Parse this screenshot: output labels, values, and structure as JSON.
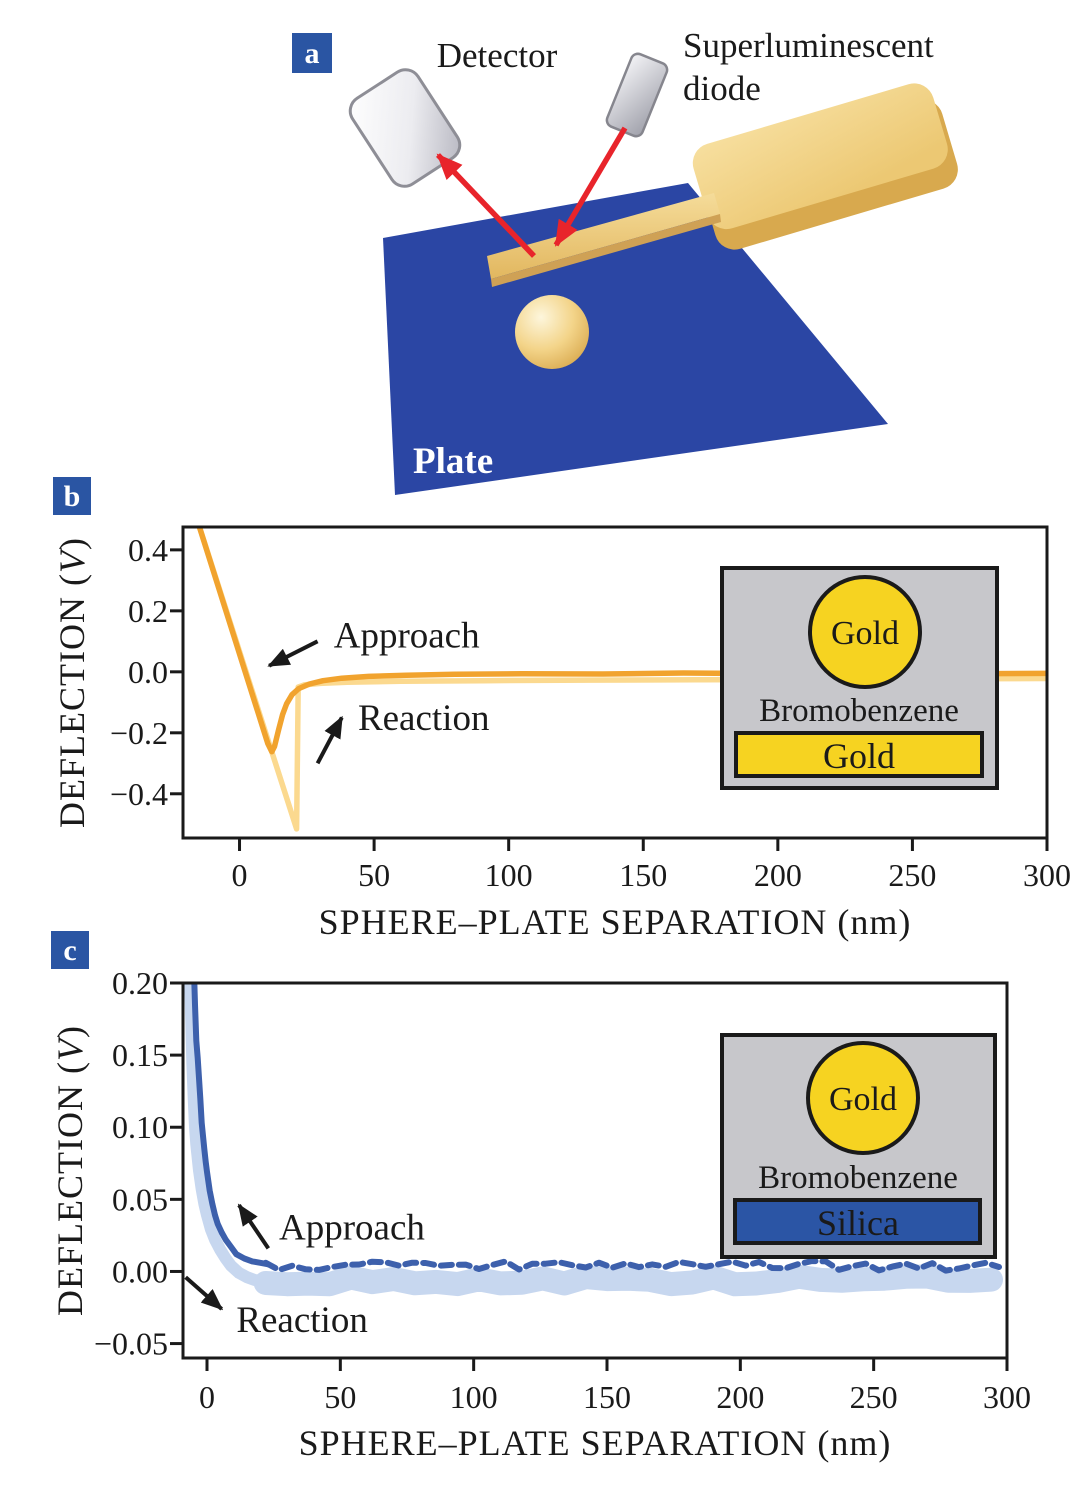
{
  "figure": {
    "tag_color": "#2A55A3",
    "background": "#FFFFFF"
  },
  "panels": {
    "a": {
      "tag": "a"
    },
    "b": {
      "tag": "b"
    },
    "c": {
      "tag": "c"
    }
  },
  "panel_a": {
    "labels": {
      "detector": "Detector",
      "diode_line1": "Superluminescent",
      "diode_line2": "diode",
      "plate": "Plate"
    },
    "colors": {
      "plate_blue": "#2B46A4",
      "arrow_red": "#E8242B",
      "gold": "#F0CE7E"
    }
  },
  "chart_data": [
    {
      "id": "b",
      "type": "line",
      "xlabel": "SPHERE–PLATE SEPARATION (nm)",
      "ylabel": "DEFLECTION",
      "ylabel_unit": "V",
      "xlim": [
        -21,
        300
      ],
      "ylim": [
        -0.545,
        0.475
      ],
      "x_ticks": [
        0,
        50,
        100,
        150,
        200,
        250,
        300
      ],
      "x_tick_labels": [
        "0",
        "50",
        "100",
        "150",
        "200",
        "250",
        "300"
      ],
      "y_ticks": [
        0.4,
        0.2,
        0.0,
        -0.2,
        -0.4
      ],
      "y_tick_labels": [
        "0.4",
        "0.2",
        "0.0",
        "−0.2",
        "−0.4"
      ],
      "grid": false,
      "legend": "none",
      "series": [
        {
          "name": "Reaction",
          "color": "#FBD98F",
          "parts": [
            {
              "width": 5.5,
              "points": [
                [
                  -16.5,
                  0.52
                ],
                [
                  21.2,
                  -0.515
                ],
                [
                  21.8,
                  -0.05
                ],
                [
                  24,
                  -0.043
                ],
                [
                  30,
                  -0.038
                ],
                [
                  40,
                  -0.034
                ],
                [
                  60,
                  -0.031
                ],
                [
                  90,
                  -0.029
                ],
                [
                  130,
                  -0.027
                ],
                [
                  170,
                  -0.026
                ],
                [
                  210,
                  -0.025
                ],
                [
                  260,
                  -0.023
                ],
                [
                  300,
                  -0.022
                ]
              ]
            }
          ]
        },
        {
          "name": "Approach",
          "color": "#F1A32E",
          "parts": [
            {
              "width": 5.5,
              "points": [
                [
                  -16.5,
                  0.52
                ],
                [
                  10.5,
                  -0.235
                ],
                [
                  12,
                  -0.262
                ],
                [
                  13,
                  -0.245
                ],
                [
                  14.5,
                  -0.19
                ],
                [
                  16,
                  -0.14
                ],
                [
                  17.5,
                  -0.105
                ],
                [
                  19.5,
                  -0.075
                ],
                [
                  22,
                  -0.055
                ],
                [
                  26,
                  -0.04
                ],
                [
                  31,
                  -0.029
                ],
                [
                  38,
                  -0.021
                ],
                [
                  48,
                  -0.015
                ],
                [
                  62,
                  -0.011
                ],
                [
                  80,
                  -0.008
                ],
                [
                  105,
                  -0.006
                ],
                [
                  135,
                  -0.007
                ],
                [
                  165,
                  -0.004
                ],
                [
                  200,
                  -0.006
                ],
                [
                  235,
                  -0.004
                ],
                [
                  270,
                  -0.006
                ],
                [
                  300,
                  -0.005
                ]
              ]
            }
          ]
        }
      ],
      "annotations": [
        {
          "text": "Approach",
          "xy": [
            35,
            0.08
          ],
          "arrow_from": [
            29,
            0.1
          ],
          "arrow_to": [
            11,
            0.02
          ]
        },
        {
          "text": "Reaction",
          "xy": [
            44,
            -0.19
          ],
          "arrow_from": [
            29,
            -0.3
          ],
          "arrow_to": [
            38,
            -0.15
          ]
        }
      ],
      "inset": {
        "bg_color": "#C7C7CB",
        "sphere_label": "Gold",
        "sphere_color": "#F6D321",
        "medium_label": "Bromobenzene",
        "plate_label": "Gold",
        "plate_color": "#F6D321",
        "plate_text_color": "#1A1A1A"
      }
    },
    {
      "id": "c",
      "type": "line",
      "xlabel": "SPHERE–PLATE SEPARATION (nm)",
      "ylabel": "DEFLECTION",
      "ylabel_unit": "V",
      "xlim": [
        -9,
        300
      ],
      "ylim": [
        -0.06,
        0.2
      ],
      "x_ticks": [
        0,
        50,
        100,
        150,
        200,
        250,
        300
      ],
      "x_tick_labels": [
        "0",
        "50",
        "100",
        "150",
        "200",
        "250",
        "300"
      ],
      "y_ticks": [
        0.2,
        0.15,
        0.1,
        0.05,
        0.0,
        -0.05
      ],
      "y_tick_labels": [
        "0.20",
        "0.15",
        "0.10",
        "0.05",
        "0.00",
        "−0.05"
      ],
      "grid": false,
      "legend": "none",
      "series": [
        {
          "name": "Reaction",
          "color": "#C7D7EF",
          "parts": [
            {
              "width": 12,
              "points": [
                [
                  -6.5,
                  0.215
                ],
                [
                  -6,
                  0.18
                ],
                [
                  -5.5,
                  0.145
                ],
                [
                  -5,
                  0.12
                ],
                [
                  -4.5,
                  0.1
                ],
                [
                  -4,
                  0.088
                ],
                [
                  -3,
                  0.07
                ],
                [
                  -2,
                  0.057
                ],
                [
                  -1,
                  0.047
                ],
                [
                  0,
                  0.039
                ],
                [
                  1.5,
                  0.029
                ],
                [
                  3,
                  0.022
                ],
                [
                  5,
                  0.015
                ],
                [
                  7,
                  0.009
                ],
                [
                  9,
                  0.004
                ],
                [
                  12,
                  -0.001
                ],
                [
                  15,
                  -0.004
                ],
                [
                  18,
                  -0.006
                ],
                [
                  22,
                  -0.007
                ]
              ]
            },
            {
              "width": 24,
              "plateau": {
                "from": 22,
                "to": 300,
                "step": 8,
                "mean": -0.006,
                "jitter": 0.003,
                "seed": 7
              }
            }
          ]
        },
        {
          "name": "Approach",
          "color": "#3D60AC",
          "parts": [
            {
              "width": 6,
              "points": [
                [
                  -5,
                  0.215
                ],
                [
                  -4.5,
                  0.185
                ],
                [
                  -4,
                  0.16
                ],
                [
                  -3.5,
                  0.148
                ],
                [
                  -3,
                  0.134
                ],
                [
                  -2.5,
                  0.12
                ],
                [
                  -2,
                  0.103
                ],
                [
                  -1.5,
                  0.094
                ],
                [
                  -1,
                  0.085
                ],
                [
                  -0.5,
                  0.076
                ],
                [
                  0,
                  0.069
                ],
                [
                  1,
                  0.056
                ],
                [
                  2,
                  0.047
                ],
                [
                  3,
                  0.039
                ],
                [
                  4,
                  0.033
                ],
                [
                  5.5,
                  0.027
                ],
                [
                  7,
                  0.022
                ],
                [
                  9,
                  0.017
                ],
                [
                  11,
                  0.012
                ],
                [
                  14,
                  0.009
                ],
                [
                  17,
                  0.007
                ],
                [
                  20,
                  0.006
                ],
                [
                  23,
                  0.005
                ]
              ]
            },
            {
              "width": 6,
              "dash": "11 7",
              "plateau": {
                "from": 22,
                "to": 300,
                "step": 5,
                "mean": 0.004,
                "jitter": 0.0035,
                "seed": 3
              }
            }
          ]
        }
      ],
      "annotations": [
        {
          "text": "Approach",
          "xy": [
            27,
            0.022
          ],
          "arrow_from": [
            23,
            0.016
          ],
          "arrow_to": [
            12,
            0.046
          ]
        },
        {
          "text": "Reaction",
          "xy": [
            11,
            -0.042
          ],
          "arrow_from": [
            -8,
            -0.004
          ],
          "arrow_to": [
            5.5,
            -0.026
          ]
        }
      ],
      "inset": {
        "bg_color": "#C7C7CB",
        "sphere_label": "Gold",
        "sphere_color": "#F6D321",
        "medium_label": "Bromobenzene",
        "plate_label": "Silica",
        "plate_color": "#2B55A5",
        "plate_text_color": "#FFFFFF"
      }
    }
  ]
}
